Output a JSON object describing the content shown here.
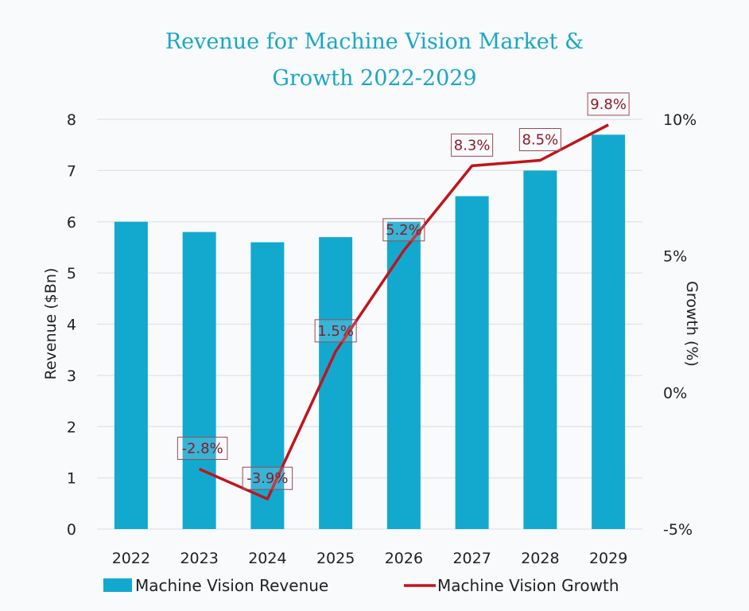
{
  "title_line1": "Revenue for Machine Vision Market &",
  "title_line2": "Growth 2022-2029",
  "chart_data": {
    "type": "bar+line",
    "title": "Revenue for Machine Vision Market & Growth 2022-2029",
    "categories": [
      "2022",
      "2023",
      "2024",
      "2025",
      "2026",
      "2027",
      "2028",
      "2029"
    ],
    "series": [
      {
        "name": "Machine Vision Revenue",
        "type": "bar",
        "axis": "left",
        "color": "#13a9cf",
        "values": [
          6.0,
          5.8,
          5.6,
          5.7,
          6.0,
          6.5,
          7.0,
          7.7
        ]
      },
      {
        "name": "Machine Vision Growth",
        "type": "line",
        "axis": "right",
        "color": "#c0141c",
        "values": [
          -2.8,
          -3.9,
          1.5,
          5.2,
          8.3,
          8.5,
          9.8
        ],
        "x": [
          "2023",
          "2024",
          "2025",
          "2026",
          "2027",
          "2028",
          "2029"
        ],
        "labels": [
          "-2.8%",
          "-3.9%",
          "1.5%",
          "5.2%",
          "8.3%",
          "8.5%",
          "9.8%"
        ]
      }
    ],
    "ylabel": "Revenue ($Bn)",
    "ylim": [
      0,
      8
    ],
    "yticks": [
      "0",
      "1",
      "2",
      "3",
      "4",
      "5",
      "6",
      "7",
      "8"
    ],
    "y2label": "Growth (%)",
    "y2lim": [
      -5,
      10
    ],
    "y2ticks": [
      "-5%",
      "0%",
      "5%",
      "10%"
    ],
    "grid": true,
    "legend": "bottom"
  }
}
